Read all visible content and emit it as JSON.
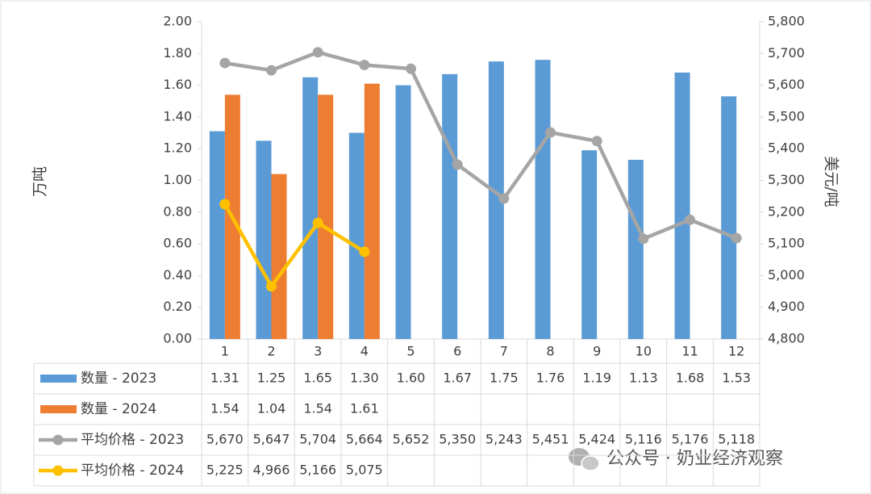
{
  "chart_data": {
    "type": "bar",
    "categories": [
      "1",
      "2",
      "3",
      "4",
      "5",
      "6",
      "7",
      "8",
      "9",
      "10",
      "11",
      "12"
    ],
    "ylabel": "万吨",
    "y2label": "美元/吨",
    "ylim": [
      0,
      2
    ],
    "yticks": [
      {
        "value": 0,
        "label": "0.00"
      },
      {
        "value": 0.2,
        "label": "0.20"
      },
      {
        "value": 0.4,
        "label": "0.40"
      },
      {
        "value": 0.6,
        "label": "0.60"
      },
      {
        "value": 0.8,
        "label": "0.80"
      },
      {
        "value": 1,
        "label": "1.00"
      },
      {
        "value": 1.2,
        "label": "1.20"
      },
      {
        "value": 1.4,
        "label": "1.40"
      },
      {
        "value": 1.6,
        "label": "1.60"
      },
      {
        "value": 1.8,
        "label": "1.80"
      },
      {
        "value": 2,
        "label": "2.00"
      }
    ],
    "y2lim": [
      4800,
      5800
    ],
    "y2ticks": [
      {
        "value": 4800,
        "label": "4,800"
      },
      {
        "value": 4900,
        "label": "4,900"
      },
      {
        "value": 5000,
        "label": "5,000"
      },
      {
        "value": 5100,
        "label": "5,100"
      },
      {
        "value": 5200,
        "label": "5,200"
      },
      {
        "value": 5300,
        "label": "5,300"
      },
      {
        "value": 5400,
        "label": "5,400"
      },
      {
        "value": 5500,
        "label": "5,500"
      },
      {
        "value": 5600,
        "label": "5,600"
      },
      {
        "value": 5700,
        "label": "5,700"
      },
      {
        "value": 5800,
        "label": "5,800"
      }
    ],
    "series": [
      {
        "name": "数量 - 2023",
        "type": "bar",
        "color": "#5b9bd5",
        "values": [
          1.31,
          1.25,
          1.65,
          1.3,
          1.6,
          1.67,
          1.75,
          1.76,
          1.19,
          1.13,
          1.68,
          1.53
        ],
        "value_labels": [
          "1.31",
          "1.25",
          "1.65",
          "1.30",
          "1.60",
          "1.67",
          "1.75",
          "1.76",
          "1.19",
          "1.13",
          "1.68",
          "1.53"
        ]
      },
      {
        "name": "数量 - 2024",
        "type": "bar",
        "color": "#ed7d31",
        "values": [
          1.54,
          1.04,
          1.54,
          1.61,
          null,
          null,
          null,
          null,
          null,
          null,
          null,
          null
        ],
        "value_labels": [
          "1.54",
          "1.04",
          "1.54",
          "1.61",
          null,
          null,
          null,
          null,
          null,
          null,
          null,
          null
        ]
      },
      {
        "name": "平均价格 - 2023",
        "type": "line",
        "axis": "y2",
        "color": "#a5a5a5",
        "values": [
          5670,
          5647,
          5704,
          5664,
          5652,
          5350,
          5243,
          5451,
          5424,
          5116,
          5176,
          5118
        ],
        "value_labels": [
          "5,670",
          "5,647",
          "5,704",
          "5,664",
          "5,652",
          "5,350",
          "5,243",
          "5,451",
          "5,424",
          "5,116",
          "5,176",
          "5,118"
        ]
      },
      {
        "name": "平均价格 - 2024",
        "type": "line",
        "axis": "y2",
        "color": "#ffc000",
        "values": [
          5225,
          4966,
          5166,
          5075,
          null,
          null,
          null,
          null,
          null,
          null,
          null,
          null
        ],
        "value_labels": [
          "5,225",
          "4,966",
          "5,166",
          "5,075",
          null,
          null,
          null,
          null,
          null,
          null,
          null,
          null
        ]
      }
    ],
    "watermark": "公众号 · 奶业经济观察"
  }
}
